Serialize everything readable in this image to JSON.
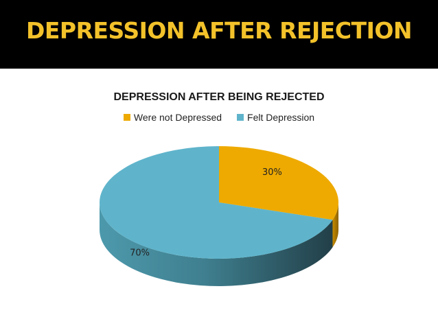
{
  "slide": {
    "title": "DEPRESSION AFTER REJECTION"
  },
  "colors": {
    "title_bar": "#000000",
    "title_text": "#f3c22a",
    "slice_not_depressed": "#eeaa00",
    "slice_felt_depression": "#5fb4cb",
    "side_felt_depression_dark": "#2a4d58"
  },
  "chart_data": {
    "type": "pie",
    "style": "3d",
    "title": "DEPRESSION AFTER BEING REJECTED",
    "legend_position": "top",
    "slices": [
      {
        "name": "Were not Depressed",
        "value": 30,
        "label": "30%",
        "color": "#eeaa00"
      },
      {
        "name": "Felt Depression",
        "value": 70,
        "label": "70%",
        "color": "#5fb4cb"
      }
    ]
  }
}
